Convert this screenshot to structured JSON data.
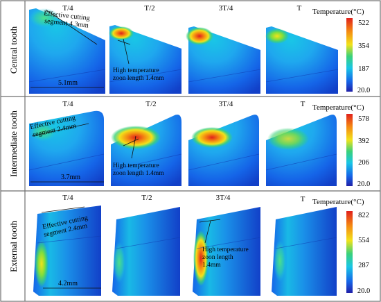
{
  "phase_labels": [
    "T/4",
    "T/2",
    "3T/4",
    "T"
  ],
  "rows": [
    {
      "label": "Central tooth",
      "legend_title": "Temperature(°C)",
      "ticks": [
        "522",
        "354",
        "187",
        "20.0"
      ],
      "annotations": {
        "cutting_line1": "Effective cutting",
        "cutting_line2": "segment 4.3mm",
        "high_line1": "High temperature",
        "high_line2": "zoon  length 1.4mm",
        "width": "5.1mm"
      }
    },
    {
      "label": "Intermediate tooth",
      "legend_title": "Temperature(°C)",
      "ticks": [
        "578",
        "392",
        "206",
        "20.0"
      ],
      "annotations": {
        "cutting_line1": "Effective cutting",
        "cutting_line2": "segment 2.4mm",
        "high_line1": "High temperature",
        "high_line2": "zoon  length 1.4mm",
        "width": "3.7mm"
      }
    },
    {
      "label": "External tooth",
      "legend_title": "Temperature(°C)",
      "ticks": [
        "822",
        "554",
        "287",
        "20.0"
      ],
      "annotations": {
        "cutting_line1": "Effective cutting",
        "cutting_line2": "segment 2.4mm",
        "high_line1": "High temperature",
        "high_line2": "zoon  length",
        "high_line3": "1.4mm",
        "width": "4.2mm"
      }
    }
  ],
  "colors": {
    "border": "#6e6e6e",
    "tooth_blue": "#1565e8",
    "tooth_cyan": "#19c6e6",
    "tooth_green": "#3ad17a",
    "hot_yellow": "#f2e21a",
    "hot_orange": "#f58a12",
    "hot_red": "#e0201c"
  }
}
